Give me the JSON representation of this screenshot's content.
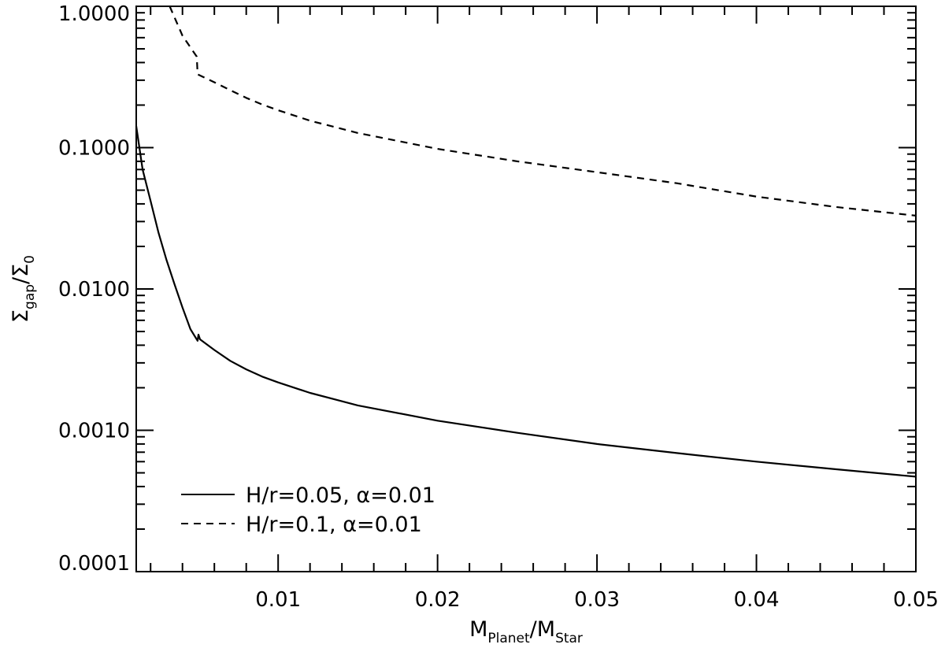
{
  "chart_data": {
    "type": "line",
    "title": "",
    "xlabel": {
      "main": "M",
      "sub1": "Planet",
      "sep": "/M",
      "sub2": "Star"
    },
    "ylabel": {
      "main": "Σ",
      "sub1": "gap",
      "sep": "/Σ",
      "sub2": "0"
    },
    "x_scale": "linear",
    "y_scale": "log",
    "xlim": [
      0.0011,
      0.05
    ],
    "ylim": [
      0.0001,
      1.0
    ],
    "x_ticks": [
      {
        "value": 0.01,
        "label": "0.01"
      },
      {
        "value": 0.02,
        "label": "0.02"
      },
      {
        "value": 0.03,
        "label": "0.03"
      },
      {
        "value": 0.04,
        "label": "0.04"
      },
      {
        "value": 0.05,
        "label": "0.05"
      }
    ],
    "y_ticks": [
      {
        "value": 0.0001,
        "label": "0.0001"
      },
      {
        "value": 0.001,
        "label": "0.0010"
      },
      {
        "value": 0.01,
        "label": "0.0100"
      },
      {
        "value": 0.1,
        "label": "0.1000"
      },
      {
        "value": 1.0,
        "label": "1.0000"
      }
    ],
    "grid": false,
    "legend_position": "bottom-left",
    "series": [
      {
        "name": "H/r=0.05, α=0.01",
        "style": "solid",
        "color": "#000000",
        "points": [
          [
            0.0011,
            0.142
          ],
          [
            0.0015,
            0.07
          ],
          [
            0.002,
            0.042
          ],
          [
            0.0025,
            0.025
          ],
          [
            0.003,
            0.016
          ],
          [
            0.0035,
            0.0108
          ],
          [
            0.004,
            0.0074
          ],
          [
            0.0045,
            0.0052
          ],
          [
            0.00495,
            0.0043
          ],
          [
            0.005,
            0.00475
          ],
          [
            0.0051,
            0.0044
          ],
          [
            0.006,
            0.0037
          ],
          [
            0.007,
            0.0031
          ],
          [
            0.008,
            0.0027
          ],
          [
            0.009,
            0.0024
          ],
          [
            0.01,
            0.00218
          ],
          [
            0.012,
            0.00184
          ],
          [
            0.015,
            0.0015
          ],
          [
            0.02,
            0.00117
          ],
          [
            0.025,
            0.00096
          ],
          [
            0.03,
            0.0008
          ],
          [
            0.035,
            0.00069
          ],
          [
            0.04,
            0.0006
          ],
          [
            0.045,
            0.00053
          ],
          [
            0.05,
            0.00047
          ]
        ]
      },
      {
        "name": "H/r=0.1, α=0.01",
        "style": "dashed",
        "color": "#000000",
        "points": [
          [
            0.0032,
            1.0
          ],
          [
            0.004,
            0.62
          ],
          [
            0.0049,
            0.44
          ],
          [
            0.00495,
            0.33
          ],
          [
            0.006,
            0.29
          ],
          [
            0.007,
            0.255
          ],
          [
            0.008,
            0.225
          ],
          [
            0.009,
            0.202
          ],
          [
            0.01,
            0.184
          ],
          [
            0.012,
            0.155
          ],
          [
            0.015,
            0.127
          ],
          [
            0.02,
            0.098
          ],
          [
            0.025,
            0.08
          ],
          [
            0.03,
            0.067
          ],
          [
            0.035,
            0.056
          ],
          [
            0.04,
            0.045
          ],
          [
            0.045,
            0.038
          ],
          [
            0.05,
            0.033
          ]
        ]
      }
    ]
  }
}
